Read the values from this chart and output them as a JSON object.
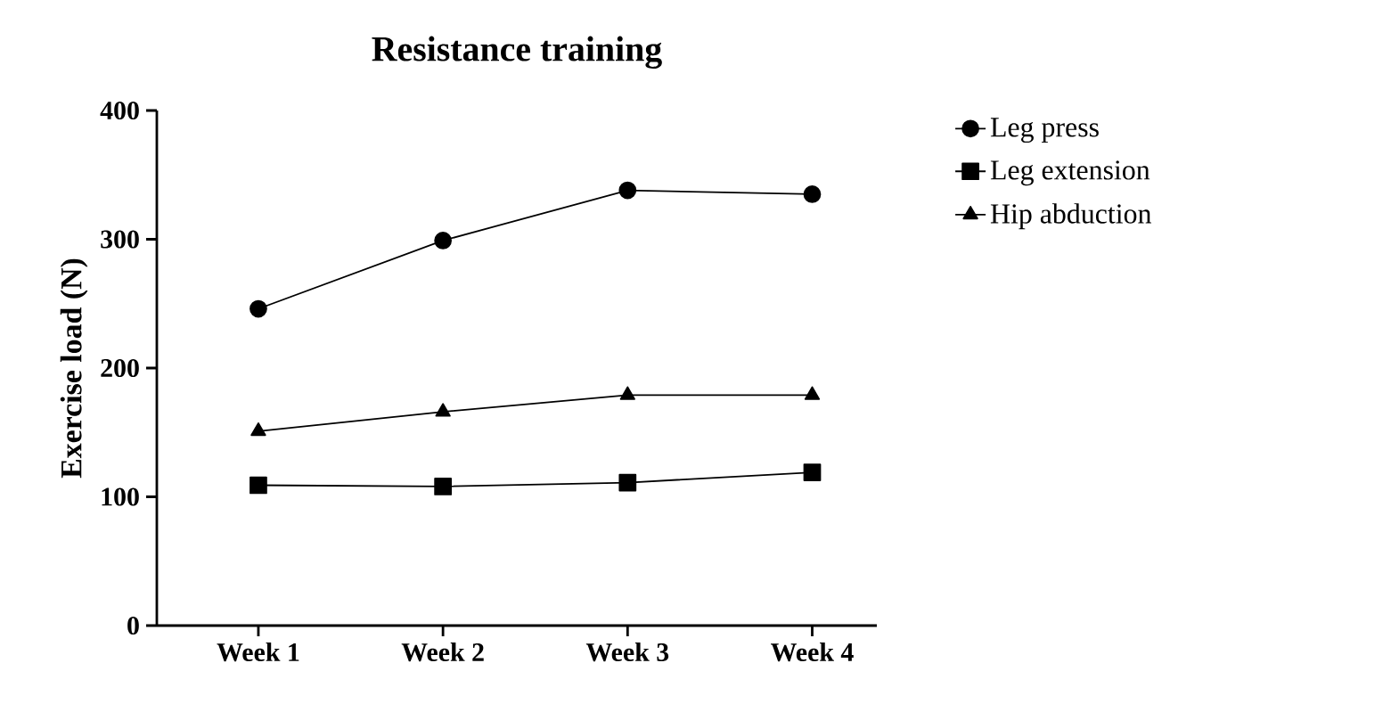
{
  "chart_data": {
    "type": "line",
    "title": "Resistance training",
    "ylabel": "Exercise load (N)",
    "categories": [
      "Week 1",
      "Week 2",
      "Week 3",
      "Week 4"
    ],
    "series": [
      {
        "name": "Leg press",
        "color": "#000000",
        "marker": "circle",
        "values": [
          246,
          299,
          338,
          335
        ]
      },
      {
        "name": "Leg extension",
        "color": "#000000",
        "marker": "square",
        "values": [
          109,
          108,
          111,
          119
        ]
      },
      {
        "name": "Hip abduction",
        "color": "#000000",
        "marker": "triangle",
        "values": [
          151,
          166,
          179,
          179
        ]
      }
    ],
    "ylim": [
      0,
      400
    ],
    "yticks": [
      0,
      100,
      200,
      300,
      400
    ],
    "grid": false,
    "legend": "right",
    "line_style": "solid"
  }
}
